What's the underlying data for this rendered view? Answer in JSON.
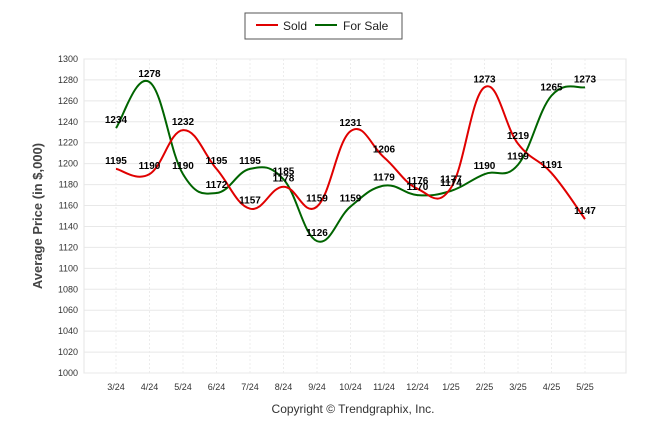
{
  "copyright": "Copyright © Trendgraphix, Inc.",
  "chart_data": {
    "type": "line",
    "categories": [
      "3/24",
      "4/24",
      "5/24",
      "6/24",
      "7/24",
      "8/24",
      "9/24",
      "10/24",
      "11/24",
      "12/24",
      "1/25",
      "2/25",
      "3/25",
      "4/25",
      "5/25"
    ],
    "ylabel": "Average Price (in $,000)",
    "xlabel": "",
    "ylim": [
      1000,
      1300
    ],
    "yticks": [
      1000,
      1020,
      1040,
      1060,
      1080,
      1100,
      1120,
      1140,
      1160,
      1180,
      1200,
      1220,
      1240,
      1260,
      1280,
      1300
    ],
    "grid": true,
    "legend_position": "top-center",
    "series": [
      {
        "name": "Sold",
        "color": "#e00000",
        "values": [
          1195,
          1190,
          1232,
          1195,
          1157,
          1178,
          1159,
          1231,
          1206,
          1176,
          1177,
          1273,
          1219,
          1191,
          1147
        ]
      },
      {
        "name": "For Sale",
        "color": "#006400",
        "values": [
          1234,
          1278,
          1190,
          1172,
          1195,
          1185,
          1126,
          1159,
          1179,
          1170,
          1174,
          1190,
          1199,
          1265,
          1273
        ]
      }
    ]
  }
}
